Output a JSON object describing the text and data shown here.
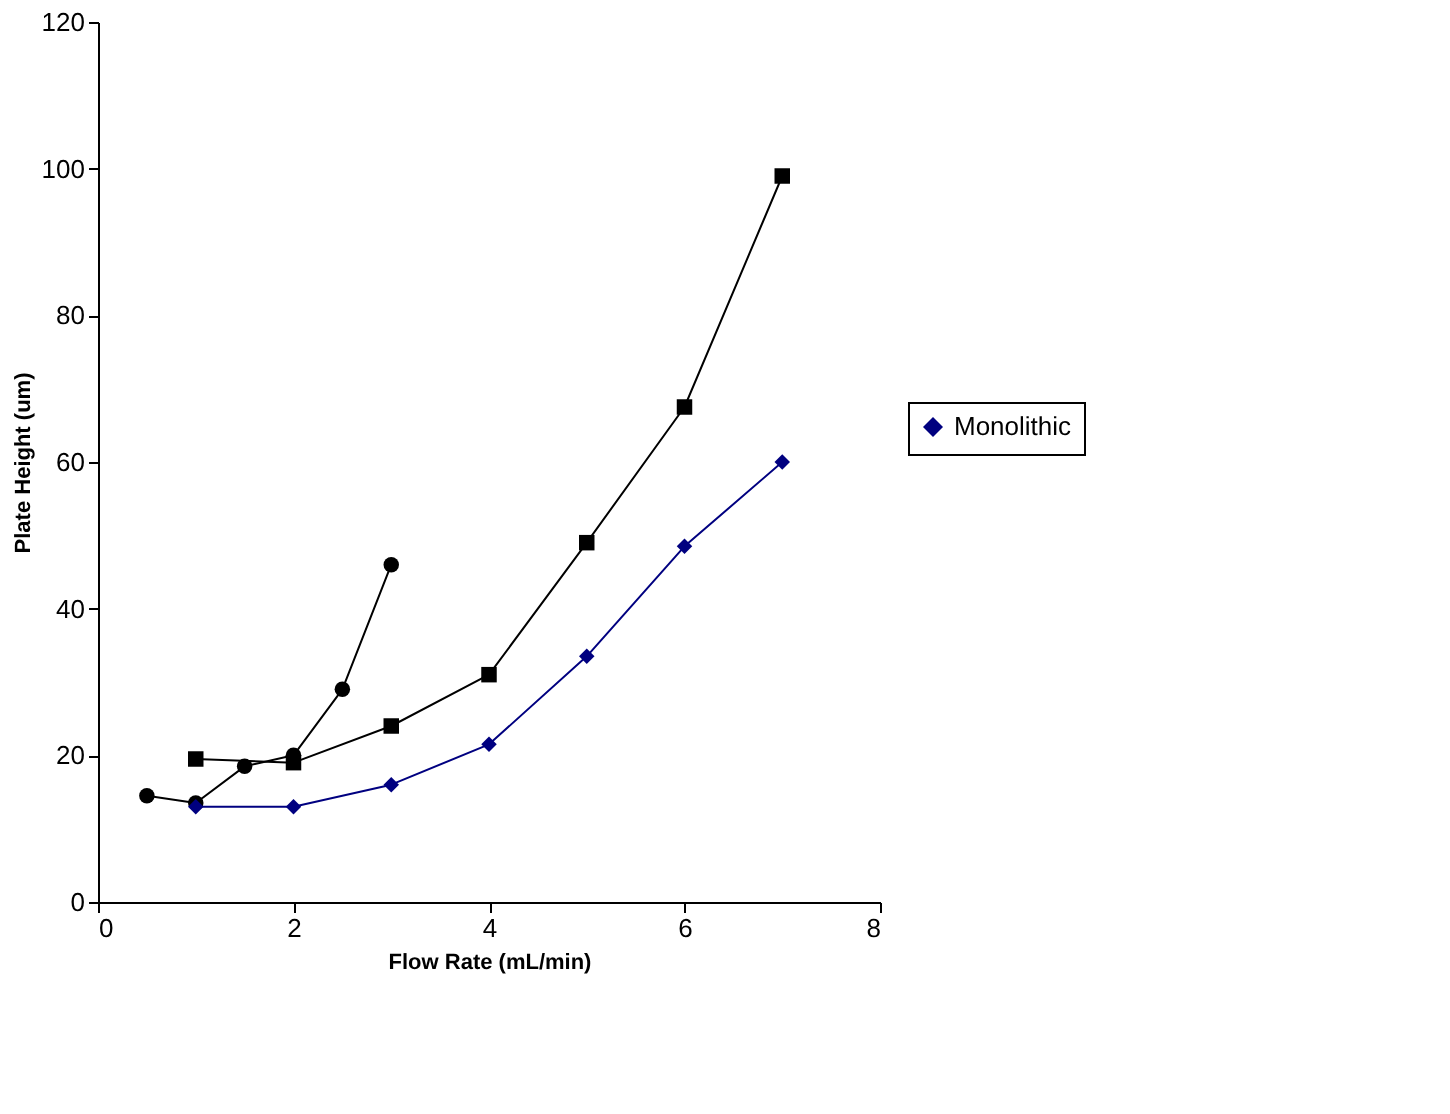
{
  "chart_data": {
    "type": "line",
    "xlabel": "Flow Rate (mL/min)",
    "ylabel": "Plate Height (um)",
    "xlim": [
      0,
      8
    ],
    "xticks": [
      0,
      2,
      4,
      6,
      8
    ],
    "ylim": [
      0,
      120
    ],
    "yticks": [
      0,
      20,
      40,
      60,
      80,
      100,
      120
    ],
    "grid": false,
    "legend": "right",
    "series": [
      {
        "name": "Monolithic",
        "color": "#000080",
        "marker": "diamond",
        "x": [
          1,
          2,
          3,
          4,
          5,
          6,
          7
        ],
        "values": [
          13,
          13,
          16,
          21.5,
          33.5,
          48.5,
          60
        ]
      },
      {
        "color": "#000000",
        "marker": "square",
        "x": [
          1,
          2,
          3,
          4,
          5,
          6,
          7
        ],
        "values": [
          19.5,
          19,
          24,
          31,
          49,
          67.5,
          99
        ]
      },
      {
        "color": "#000000",
        "marker": "circle",
        "x": [
          0.5,
          1,
          1.5,
          2,
          2.5,
          3
        ],
        "values": [
          14.5,
          13.5,
          18.5,
          20,
          29,
          46
        ]
      }
    ]
  }
}
